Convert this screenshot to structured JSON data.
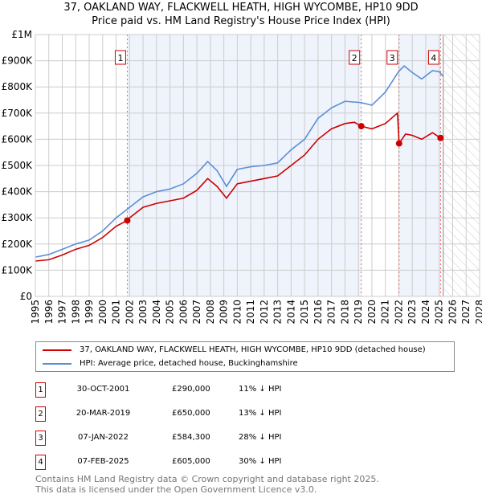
{
  "chart_data": {
    "type": "line",
    "title": "37, OAKLAND WAY, FLACKWELL HEATH, HIGH WYCOMBE, HP10 9DD",
    "subtitle": "Price paid vs. HM Land Registry's House Price Index (HPI)",
    "xlim": [
      1995,
      2028
    ],
    "ylim": [
      0,
      1000000
    ],
    "x_ticks": [
      "1995",
      "1996",
      "1997",
      "1998",
      "1999",
      "2000",
      "2001",
      "2002",
      "2003",
      "2004",
      "2005",
      "2006",
      "2007",
      "2008",
      "2009",
      "2010",
      "2011",
      "2012",
      "2013",
      "2014",
      "2015",
      "2016",
      "2017",
      "2018",
      "2019",
      "2020",
      "2021",
      "2022",
      "2023",
      "2024",
      "2025",
      "2026",
      "2027",
      "2028"
    ],
    "y_ticks": [
      {
        "v": 0,
        "label": "£0"
      },
      {
        "v": 100000,
        "label": "£100K"
      },
      {
        "v": 200000,
        "label": "£200K"
      },
      {
        "v": 300000,
        "label": "£300K"
      },
      {
        "v": 400000,
        "label": "£400K"
      },
      {
        "v": 500000,
        "label": "£500K"
      },
      {
        "v": 600000,
        "label": "£600K"
      },
      {
        "v": 700000,
        "label": "£700K"
      },
      {
        "v": 800000,
        "label": "£800K"
      },
      {
        "v": 900000,
        "label": "£900K"
      },
      {
        "v": 1000000,
        "label": "£1M"
      }
    ],
    "grid": true,
    "series": [
      {
        "name": "37, OAKLAND WAY, FLACKWELL HEATH, HIGH WYCOMBE, HP10 9DD (detached house)",
        "color": "#cc0000",
        "points": [
          [
            1995,
            135000
          ],
          [
            1996,
            140000
          ],
          [
            1997,
            158000
          ],
          [
            1998,
            180000
          ],
          [
            1999,
            195000
          ],
          [
            2000,
            225000
          ],
          [
            2001,
            268000
          ],
          [
            2001.83,
            290000
          ],
          [
            2002,
            300000
          ],
          [
            2003,
            340000
          ],
          [
            2004,
            355000
          ],
          [
            2005,
            365000
          ],
          [
            2006,
            375000
          ],
          [
            2007,
            405000
          ],
          [
            2007.8,
            450000
          ],
          [
            2008.5,
            420000
          ],
          [
            2009.2,
            375000
          ],
          [
            2010,
            430000
          ],
          [
            2011,
            440000
          ],
          [
            2012,
            450000
          ],
          [
            2013,
            460000
          ],
          [
            2014,
            500000
          ],
          [
            2015,
            540000
          ],
          [
            2016,
            600000
          ],
          [
            2017,
            640000
          ],
          [
            2018,
            660000
          ],
          [
            2018.7,
            665000
          ],
          [
            2019.21,
            650000
          ],
          [
            2020,
            640000
          ],
          [
            2021,
            660000
          ],
          [
            2021.9,
            700000
          ],
          [
            2022.02,
            584300
          ],
          [
            2022.5,
            620000
          ],
          [
            2023,
            615000
          ],
          [
            2023.7,
            600000
          ],
          [
            2024.5,
            625000
          ],
          [
            2025.1,
            605000
          ],
          [
            2025.3,
            600000
          ]
        ]
      },
      {
        "name": "HPI: Average price, detached house, Buckinghamshire",
        "color": "#5b8fd4",
        "points": [
          [
            1995,
            150000
          ],
          [
            1996,
            160000
          ],
          [
            1997,
            180000
          ],
          [
            1998,
            200000
          ],
          [
            1999,
            215000
          ],
          [
            2000,
            250000
          ],
          [
            2001,
            300000
          ],
          [
            2002,
            340000
          ],
          [
            2003,
            380000
          ],
          [
            2004,
            400000
          ],
          [
            2005,
            410000
          ],
          [
            2006,
            430000
          ],
          [
            2007,
            470000
          ],
          [
            2007.8,
            515000
          ],
          [
            2008.5,
            480000
          ],
          [
            2009.2,
            420000
          ],
          [
            2010,
            485000
          ],
          [
            2011,
            495000
          ],
          [
            2012,
            500000
          ],
          [
            2013,
            510000
          ],
          [
            2014,
            560000
          ],
          [
            2015,
            600000
          ],
          [
            2016,
            680000
          ],
          [
            2017,
            720000
          ],
          [
            2018,
            745000
          ],
          [
            2019.2,
            740000
          ],
          [
            2020,
            730000
          ],
          [
            2021,
            780000
          ],
          [
            2022,
            860000
          ],
          [
            2022.4,
            880000
          ],
          [
            2023,
            855000
          ],
          [
            2023.7,
            830000
          ],
          [
            2024.5,
            862000
          ],
          [
            2025,
            858000
          ],
          [
            2025.3,
            840000
          ]
        ]
      }
    ],
    "sales": [
      {
        "id": "1",
        "date": "30-OCT-2001",
        "x": 2001.83,
        "price": "£290,000",
        "value": 290000,
        "hpi": "11% ↓ HPI"
      },
      {
        "id": "2",
        "date": "20-MAR-2019",
        "x": 2019.21,
        "price": "£650,000",
        "value": 650000,
        "hpi": "13% ↓ HPI"
      },
      {
        "id": "3",
        "date": "07-JAN-2022",
        "x": 2022.02,
        "price": "£584,300",
        "value": 584300,
        "hpi": "28% ↓ HPI"
      },
      {
        "id": "4",
        "date": "07-FEB-2025",
        "x": 2025.1,
        "price": "£605,000",
        "value": 605000,
        "hpi": "30% ↓ HPI"
      }
    ],
    "forecast_start": 2025.3
  },
  "footer": {
    "line1": "Contains HM Land Registry data © Crown copyright and database right 2025.",
    "line2": "This data is licensed under the Open Government Licence v3.0."
  }
}
